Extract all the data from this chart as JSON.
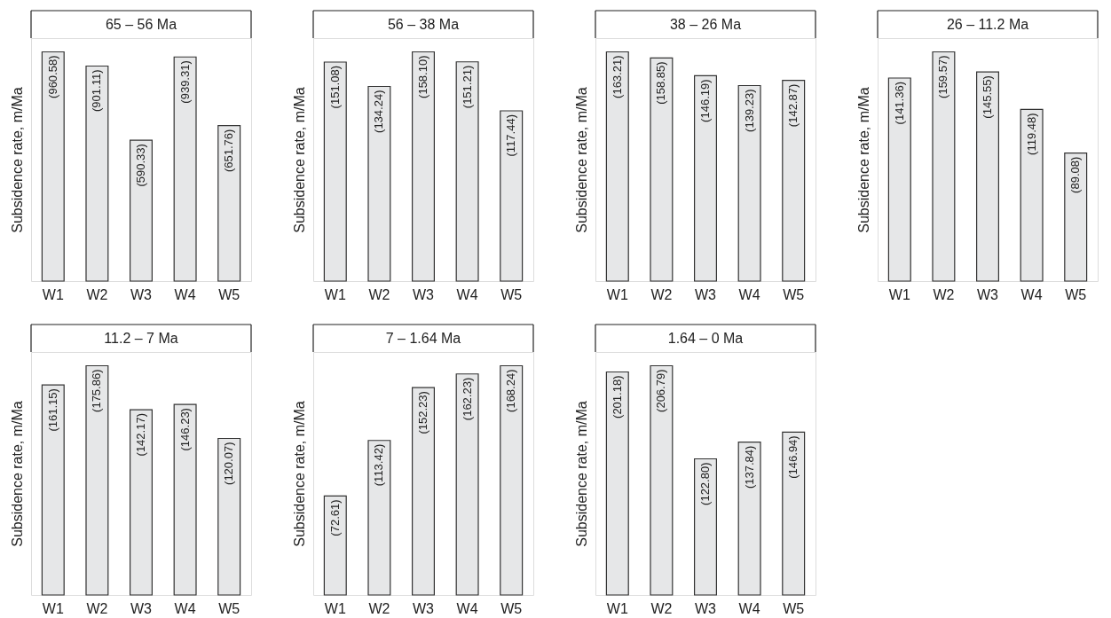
{
  "chart_data": [
    {
      "type": "bar",
      "title": "65 – 56 Ma",
      "ylabel": "Subsidence rate, m/Ma",
      "categories": [
        "W1",
        "W2",
        "W3",
        "W4",
        "W5"
      ],
      "values": [
        960.58,
        901.11,
        590.33,
        939.31,
        651.76
      ],
      "value_labels": [
        "(960.58)",
        "(901.11)",
        "(590.33)",
        "(939.31)",
        "(651.76)"
      ],
      "color": "#e6e7e8",
      "tick_labels": "x"
    },
    {
      "type": "bar",
      "title": "56 – 38 Ma",
      "ylabel": "Subsidence rate, m/Ma",
      "categories": [
        "W1",
        "W2",
        "W3",
        "W4",
        "W5"
      ],
      "values": [
        151.08,
        134.24,
        158.1,
        151.21,
        117.44
      ],
      "value_labels": [
        "(151.08)",
        "(134.24)",
        "(158.10)",
        "(151.21)",
        "(117.44)"
      ],
      "color": "#e6e7e8",
      "tick_labels": "x"
    },
    {
      "type": "bar",
      "title": "38 – 26 Ma",
      "ylabel": "Subsidence rate, m/Ma",
      "categories": [
        "W1",
        "W2",
        "W3",
        "W4",
        "W5"
      ],
      "values": [
        163.21,
        158.85,
        146.19,
        139.23,
        142.87
      ],
      "value_labels": [
        "(163.21)",
        "(158.85)",
        "(146.19)",
        "(139.23)",
        "(142.87)"
      ],
      "color": "#e6e7e8",
      "tick_labels": "x"
    },
    {
      "type": "bar",
      "title": "26 – 11.2 Ma",
      "ylabel": "Subsidence rate, m/Ma",
      "categories": [
        "W1",
        "W2",
        "W3",
        "W4",
        "W5"
      ],
      "values": [
        141.36,
        159.57,
        145.55,
        119.48,
        89.08
      ],
      "value_labels": [
        "(141.36)",
        "(159.57)",
        "(145.55)",
        "(119.48)",
        "(89.08)"
      ],
      "color": "#e6e7e8",
      "tick_labels": "x"
    },
    {
      "type": "bar",
      "title": "11.2 – 7 Ma",
      "ylabel": "Subsidence rate, m/Ma",
      "categories": [
        "W1",
        "W2",
        "W3",
        "W4",
        "W5"
      ],
      "values": [
        161.15,
        175.86,
        142.17,
        146.23,
        120.07
      ],
      "value_labels": [
        "(161.15)",
        "(175.86)",
        "(142.17)",
        "(146.23)",
        "(120.07)"
      ],
      "color": "#e6e7e8",
      "tick_labels": "x"
    },
    {
      "type": "bar",
      "title": "7 – 1.64 Ma",
      "ylabel": "Subsidence rate, m/Ma",
      "categories": [
        "W1",
        "W2",
        "W3",
        "W4",
        "W5"
      ],
      "values": [
        72.61,
        113.42,
        152.23,
        162.23,
        168.24
      ],
      "value_labels": [
        "(72.61)",
        "(113.42)",
        "(152.23)",
        "(162.23)",
        "(168.24)"
      ],
      "color": "#e6e7e8",
      "tick_labels": "x"
    },
    {
      "type": "bar",
      "title": "1.64 – 0 Ma",
      "ylabel": "Subsidence rate, m/Ma",
      "categories": [
        "W1",
        "W2",
        "W3",
        "W4",
        "W5"
      ],
      "values": [
        201.18,
        206.79,
        122.8,
        137.84,
        146.94
      ],
      "value_labels": [
        "(201.18)",
        "(206.79)",
        "(122.80)",
        "(137.84)",
        "(146.94)"
      ],
      "color": "#e6e7e8",
      "tick_labels": "x"
    }
  ]
}
